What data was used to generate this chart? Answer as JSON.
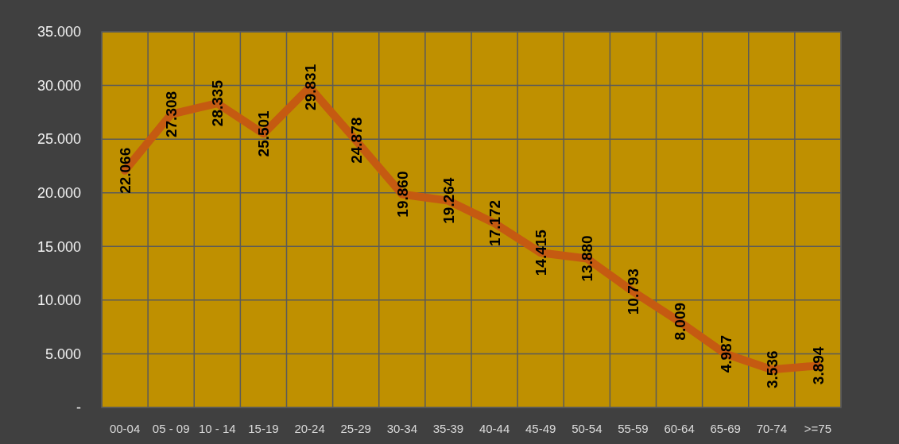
{
  "chart_data": {
    "type": "line",
    "categories": [
      "00-04",
      "05 - 09",
      "10 - 14",
      "15-19",
      "20-24",
      "25-29",
      "30-34",
      "35-39",
      "40-44",
      "45-49",
      "50-54",
      "55-59",
      "60-64",
      "65-69",
      "70-74",
      ">=75"
    ],
    "series": [
      {
        "color": "#c55a11",
        "values": [
          22066,
          27308,
          28335,
          25501,
          29831,
          24878,
          19860,
          19264,
          17172,
          14415,
          13880,
          10793,
          8009,
          4987,
          3536,
          3894
        ],
        "value_labels": [
          "22.066",
          "27.308",
          "28.335",
          "25.501",
          "29.831",
          "24.878",
          "19.860",
          "19.264",
          "17.172",
          "14.415",
          "13.880",
          "10.793",
          "8.009",
          "4.987",
          "3.536",
          "3.894"
        ]
      }
    ],
    "ylim": [
      0,
      35000
    ],
    "yticks": [
      {
        "value": 0,
        "label": "-"
      },
      {
        "value": 5000,
        "label": "5.000"
      },
      {
        "value": 10000,
        "label": "10.000"
      },
      {
        "value": 15000,
        "label": "15.000"
      },
      {
        "value": 20000,
        "label": "20.000"
      },
      {
        "value": 25000,
        "label": "25.000"
      },
      {
        "value": 30000,
        "label": "30.000"
      },
      {
        "value": 35000,
        "label": "35.000"
      }
    ],
    "grid": true,
    "marker": "none",
    "line_style": "solid"
  }
}
